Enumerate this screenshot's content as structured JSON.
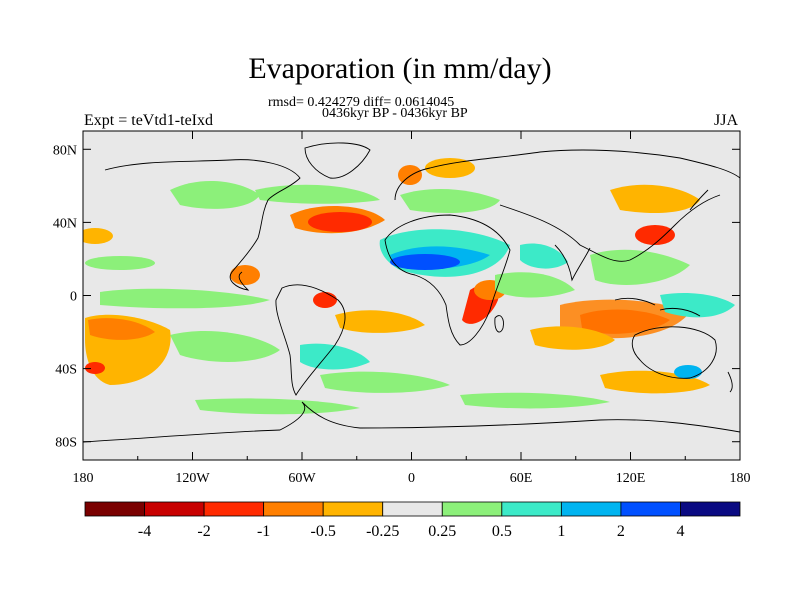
{
  "title": "Evaporation (in mm/day)",
  "stats": "rmsd= 0.424279 diff= 0.0614045",
  "period": "0436kyr BP - 0436kyr BP",
  "expt": "Expt = teVtd1-teIxd",
  "season": "JJA",
  "lat_ticks": [
    {
      "label": "80N",
      "value": 80
    },
    {
      "label": "40N",
      "value": 40
    },
    {
      "label": "0",
      "value": 0
    },
    {
      "label": "40S",
      "value": -40
    },
    {
      "label": "80S",
      "value": -80
    }
  ],
  "lon_ticks": [
    {
      "label": "180",
      "value": -180
    },
    {
      "label": "120W",
      "value": -120
    },
    {
      "label": "60W",
      "value": -60
    },
    {
      "label": "0",
      "value": 0
    },
    {
      "label": "60E",
      "value": 60
    },
    {
      "label": "120E",
      "value": 120
    },
    {
      "label": "180",
      "value": 180
    }
  ],
  "colorbar": {
    "colors": [
      "#7a0000",
      "#c80000",
      "#ff2a00",
      "#ff7f00",
      "#ffb400",
      "#e8e8e8",
      "#8cf07a",
      "#3ceac8",
      "#00b4f0",
      "#0050ff",
      "#0a0a82"
    ],
    "labels": [
      "-4",
      "-2",
      "-1",
      "-0.5",
      "-0.25",
      "0.25",
      "0.5",
      "1",
      "2",
      "4"
    ]
  },
  "map_colors": {
    "ocean": "#e8e8e8",
    "coast": "#000000"
  }
}
